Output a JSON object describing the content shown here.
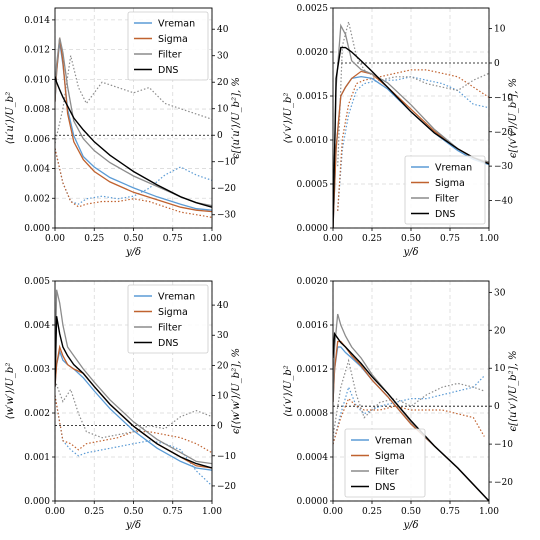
{
  "x_ticks": [
    "0.00",
    "0.25",
    "0.50",
    "0.75",
    "1.00"
  ],
  "series_names": [
    "Vreman",
    "Sigma",
    "Filter",
    "DNS"
  ],
  "colors": {
    "Vreman": "#5b9bd5",
    "Sigma": "#c0622f",
    "Filter": "#8c8c8c",
    "DNS": "#000000"
  },
  "chart_data": [
    {
      "type": "line",
      "panel": "top-left",
      "xlabel": "y/δ",
      "ylabel": "⟨u′u′⟩/U_b²",
      "y2label": "ϵ[⟨u′u′⟩/U_b²], %",
      "xlim": [
        0,
        1
      ],
      "ylim": [
        0,
        0.0148
      ],
      "y2lim": [
        -35,
        48
      ],
      "y_ticks": [
        "0.000",
        "0.002",
        "0.004",
        "0.006",
        "0.008",
        "0.010",
        "0.012",
        "0.014"
      ],
      "y_tick_values": [
        0,
        0.002,
        0.004,
        0.006,
        0.008,
        0.01,
        0.012,
        0.014
      ],
      "y2_ticks": [
        "−30",
        "−20",
        "−10",
        "0",
        "10",
        "20",
        "30",
        "40"
      ],
      "y2_tick_values": [
        -30,
        -20,
        -10,
        0,
        10,
        20,
        30,
        40
      ],
      "legend": "top-right",
      "x": [
        0,
        0.01,
        0.03,
        0.05,
        0.08,
        0.12,
        0.18,
        0.25,
        0.35,
        0.5,
        0.65,
        0.8,
        0.9,
        1.0
      ],
      "series": [
        {
          "name": "Vreman",
          "values": [
            0.0085,
            0.0105,
            0.0125,
            0.011,
            0.008,
            0.0062,
            0.0048,
            0.0041,
            0.0034,
            0.0027,
            0.0021,
            0.0016,
            0.0013,
            0.0012
          ]
        },
        {
          "name": "Sigma",
          "values": [
            0.0085,
            0.0105,
            0.0128,
            0.0112,
            0.0077,
            0.0058,
            0.0046,
            0.0038,
            0.0031,
            0.0024,
            0.0019,
            0.0014,
            0.0012,
            0.0011
          ]
        },
        {
          "name": "Filter",
          "values": [
            0.0085,
            0.011,
            0.0128,
            0.0118,
            0.0095,
            0.0072,
            0.006,
            0.0052,
            0.0044,
            0.0035,
            0.0028,
            0.0021,
            0.0017,
            0.0015
          ]
        },
        {
          "name": "DNS",
          "values": [
            0.0102,
            0.0098,
            0.0093,
            0.0088,
            0.0082,
            0.0074,
            0.0066,
            0.0058,
            0.0049,
            0.0038,
            0.0029,
            0.0021,
            0.0017,
            0.0014
          ]
        }
      ],
      "error_x": [
        0.0,
        0.05,
        0.1,
        0.15,
        0.2,
        0.3,
        0.4,
        0.5,
        0.6,
        0.7,
        0.8,
        0.9,
        1.0
      ],
      "error_series": [
        {
          "name": "Vreman",
          "values": [
            -5,
            -18,
            -25,
            -26,
            -24,
            -23,
            -24,
            -23,
            -20,
            -15,
            -12,
            -15,
            -17
          ]
        },
        {
          "name": "Sigma",
          "values": [
            -5,
            -18,
            -25,
            -27,
            -26,
            -25,
            -25,
            -24,
            -25,
            -27,
            -29,
            -30,
            -31
          ]
        },
        {
          "name": "Filter",
          "values": [
            -3,
            10,
            30,
            18,
            12,
            20,
            18,
            16,
            18,
            12,
            10,
            8,
            6
          ]
        }
      ]
    },
    {
      "type": "line",
      "panel": "top-right",
      "xlabel": "y/δ",
      "ylabel": "⟨v′v′⟩/U_b²",
      "y2label": "ϵ[⟨v′v′⟩/U_b²], %",
      "xlim": [
        0,
        1
      ],
      "ylim": [
        0,
        0.0025
      ],
      "y2lim": [
        -48,
        16
      ],
      "y_ticks": [
        "0.0000",
        "0.0005",
        "0.0010",
        "0.0015",
        "0.0020",
        "0.0025"
      ],
      "y_tick_values": [
        0,
        0.0005,
        0.001,
        0.0015,
        0.002,
        0.0025
      ],
      "y2_ticks": [
        "−40",
        "−30",
        "−20",
        "−10",
        "0",
        "10"
      ],
      "y2_tick_values": [
        -40,
        -30,
        -20,
        -10,
        0,
        10
      ],
      "legend": "bottom-right",
      "x": [
        0,
        0.02,
        0.05,
        0.08,
        0.12,
        0.18,
        0.25,
        0.35,
        0.5,
        0.65,
        0.8,
        0.9,
        1.0
      ],
      "series": [
        {
          "name": "Vreman",
          "values": [
            0,
            0.0009,
            0.0015,
            0.0016,
            0.0017,
            0.00172,
            0.0017,
            0.00158,
            0.00132,
            0.00108,
            0.00088,
            0.00078,
            0.00072
          ]
        },
        {
          "name": "Sigma",
          "values": [
            0,
            0.0009,
            0.0015,
            0.0016,
            0.0017,
            0.00178,
            0.00175,
            0.0016,
            0.00135,
            0.0011,
            0.0009,
            0.0008,
            0.00074
          ]
        },
        {
          "name": "Filter",
          "values": [
            0,
            0.0016,
            0.0023,
            0.0022,
            0.0019,
            0.0018,
            0.00175,
            0.00165,
            0.0014,
            0.00112,
            0.0009,
            0.0008,
            0.00075
          ]
        },
        {
          "name": "DNS",
          "values": [
            0,
            0.0017,
            0.00205,
            0.00205,
            0.002,
            0.0019,
            0.00178,
            0.0016,
            0.00132,
            0.00108,
            0.0009,
            0.0008,
            0.00073
          ]
        }
      ],
      "error_x": [
        0.03,
        0.06,
        0.1,
        0.15,
        0.2,
        0.3,
        0.4,
        0.5,
        0.6,
        0.7,
        0.8,
        0.9,
        1.0
      ],
      "error_series": [
        {
          "name": "Vreman",
          "values": [
            -43,
            -25,
            -15,
            -8,
            -6,
            -5,
            -5,
            -4,
            -5,
            -6,
            -8,
            -12,
            -13
          ]
        },
        {
          "name": "Sigma",
          "values": [
            -43,
            -22,
            -12,
            -6,
            -5,
            -4,
            -3,
            -2,
            -2,
            -3,
            -4,
            -7,
            -10
          ]
        },
        {
          "name": "Filter",
          "values": [
            -30,
            5,
            12,
            2,
            -2,
            -5,
            -4,
            -4,
            -6,
            -7,
            -8,
            -5,
            -3
          ]
        }
      ]
    },
    {
      "type": "line",
      "panel": "bottom-left",
      "xlabel": "y/δ",
      "ylabel": "⟨w′w′⟩/U_b²",
      "y2label": "ϵ[⟨w′w′⟩/U_b²], %",
      "xlim": [
        0,
        1
      ],
      "ylim": [
        0,
        0.005
      ],
      "y2lim": [
        -25,
        48
      ],
      "y_ticks": [
        "0.000",
        "0.001",
        "0.002",
        "0.003",
        "0.004",
        "0.005"
      ],
      "y_tick_values": [
        0,
        0.001,
        0.002,
        0.003,
        0.004,
        0.005
      ],
      "y2_ticks": [
        "−20",
        "−10",
        "0",
        "10",
        "20",
        "30",
        "40"
      ],
      "y2_tick_values": [
        -20,
        -10,
        0,
        10,
        20,
        30,
        40
      ],
      "legend": "top-right",
      "x": [
        0,
        0.01,
        0.03,
        0.05,
        0.08,
        0.12,
        0.18,
        0.25,
        0.35,
        0.5,
        0.65,
        0.8,
        0.9,
        1.0
      ],
      "series": [
        {
          "name": "Vreman",
          "values": [
            0.0026,
            0.0031,
            0.0034,
            0.0032,
            0.0031,
            0.003,
            0.0028,
            0.0025,
            0.0021,
            0.0016,
            0.0012,
            0.0009,
            0.00075,
            0.0007
          ]
        },
        {
          "name": "Sigma",
          "values": [
            0.0026,
            0.0031,
            0.0035,
            0.0033,
            0.0031,
            0.003,
            0.0029,
            0.0026,
            0.0022,
            0.0017,
            0.0013,
            0.001,
            0.0008,
            0.00075
          ]
        },
        {
          "name": "Filter",
          "values": [
            0.0026,
            0.0048,
            0.0045,
            0.004,
            0.0035,
            0.0033,
            0.003,
            0.0027,
            0.0023,
            0.0018,
            0.0014,
            0.0011,
            0.0009,
            0.00085
          ]
        },
        {
          "name": "DNS",
          "values": [
            0.0026,
            0.0042,
            0.0038,
            0.0035,
            0.0033,
            0.0031,
            0.0029,
            0.0026,
            0.0022,
            0.0017,
            0.0013,
            0.001,
            0.00085,
            0.00075
          ]
        }
      ],
      "error_x": [
        0.0,
        0.05,
        0.1,
        0.15,
        0.2,
        0.3,
        0.4,
        0.5,
        0.6,
        0.7,
        0.8,
        0.9,
        1.0
      ],
      "error_series": [
        {
          "name": "Vreman",
          "values": [
            10,
            -5,
            -8,
            -10,
            -9,
            -8,
            -7,
            -6,
            -5,
            -6,
            -8,
            -15,
            -20
          ]
        },
        {
          "name": "Sigma",
          "values": [
            10,
            -5,
            -6,
            -8,
            -6,
            -5,
            -4,
            -2,
            -2,
            -3,
            -4,
            -6,
            -9
          ]
        },
        {
          "name": "Filter",
          "values": [
            15,
            8,
            12,
            4,
            -2,
            -4,
            -3,
            -2,
            0,
            -1,
            3,
            5,
            3
          ]
        }
      ]
    },
    {
      "type": "line",
      "panel": "bottom-right",
      "xlabel": "y/δ",
      "ylabel": "⟨u′v′⟩/U_b²",
      "y2label": "ϵ[⟨u′v′⟩/U_b²], %",
      "xlim": [
        0,
        1
      ],
      "ylim": [
        0,
        0.002
      ],
      "y2lim": [
        -25,
        33
      ],
      "y_ticks": [
        "0.0000",
        "0.0004",
        "0.0008",
        "0.0012",
        "0.0016",
        "0.0020"
      ],
      "y_tick_values": [
        0,
        0.0004,
        0.0008,
        0.0012,
        0.0016,
        0.002
      ],
      "y2_ticks": [
        "−20",
        "−10",
        "0",
        "10",
        "20",
        "30"
      ],
      "y2_tick_values": [
        -20,
        -10,
        0,
        10,
        20,
        30
      ],
      "legend": "bottom-left",
      "x": [
        0,
        0.01,
        0.03,
        0.05,
        0.08,
        0.12,
        0.18,
        0.25,
        0.35,
        0.5,
        0.65,
        0.8,
        0.9,
        1.0
      ],
      "series": [
        {
          "name": "Vreman",
          "values": [
            0.0009,
            0.0012,
            0.0014,
            0.0014,
            0.00135,
            0.0013,
            0.00122,
            0.0011,
            0.00095,
            0.0007,
            0.0005,
            0.0003,
            0.00015,
            0
          ]
        },
        {
          "name": "Sigma",
          "values": [
            0.0009,
            0.0012,
            0.00145,
            0.00145,
            0.0014,
            0.00132,
            0.00123,
            0.0011,
            0.00095,
            0.0007,
            0.0005,
            0.0003,
            0.00015,
            0
          ]
        },
        {
          "name": "Filter",
          "values": [
            0.0009,
            0.0014,
            0.0017,
            0.0016,
            0.0015,
            0.0014,
            0.0013,
            0.00115,
            0.00098,
            0.00072,
            0.0005,
            0.0003,
            0.00015,
            0
          ]
        },
        {
          "name": "DNS",
          "values": [
            0.0013,
            0.00152,
            0.00148,
            0.00144,
            0.0014,
            0.00134,
            0.00125,
            0.00113,
            0.00098,
            0.00073,
            0.0005,
            0.0003,
            0.00015,
            0
          ]
        }
      ],
      "error_x": [
        0.0,
        0.05,
        0.1,
        0.15,
        0.2,
        0.3,
        0.4,
        0.5,
        0.6,
        0.7,
        0.8,
        0.9,
        0.97
      ],
      "error_series": [
        {
          "name": "Vreman",
          "values": [
            -10,
            -2,
            5,
            0,
            -2,
            0,
            1,
            2,
            2,
            3,
            4,
            5,
            8
          ]
        },
        {
          "name": "Sigma",
          "values": [
            -10,
            -3,
            2,
            0,
            -1,
            -1,
            0,
            -1,
            -1,
            -1,
            -2,
            -3,
            -8
          ]
        },
        {
          "name": "Filter",
          "values": [
            -8,
            5,
            12,
            3,
            -3,
            1,
            2,
            0,
            3,
            5,
            6,
            5,
            4
          ]
        }
      ]
    }
  ]
}
